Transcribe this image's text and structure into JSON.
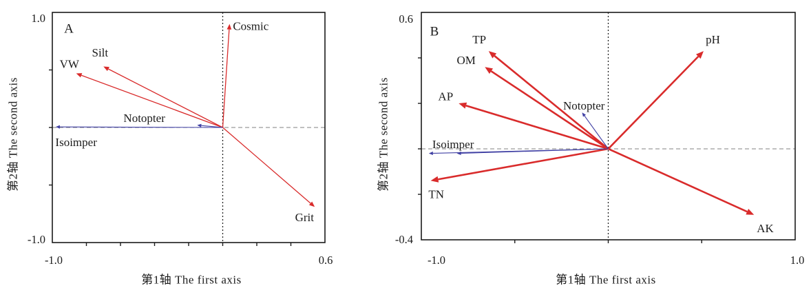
{
  "colors": {
    "env_arrow": "#d92b2b",
    "species_arrow": "#3f3fa3",
    "axis": "#1a1a1a",
    "zero_line_h": "#808080",
    "zero_line_v": "#222222"
  },
  "chart_data": [
    {
      "type": "scatter",
      "subtype": "cca-biplot",
      "panel_label": "A",
      "xlabel": "第1轴 The first axis",
      "ylabel": "第2轴 The second axis",
      "xlim": [
        -1.0,
        0.6
      ],
      "ylim": [
        -1.0,
        1.0
      ],
      "x_left_label": "-1.0",
      "x_right_label": "0.6",
      "y_top_label": "1.0",
      "y_bottom_label": "-1.0",
      "xticks": [
        -0.8,
        -0.6,
        -0.4,
        -0.2,
        0.0,
        0.2,
        0.4
      ],
      "yticks": [
        -0.5,
        0.0,
        0.5
      ],
      "grid": false,
      "env_arrow_width": 1.3,
      "head_len": 8,
      "env_arrows": [
        {
          "name": "VW",
          "x": -0.86,
          "y": 0.47,
          "label_at": [
            -0.9,
            0.55
          ],
          "anchor": "middle"
        },
        {
          "name": "Silt",
          "x": -0.7,
          "y": 0.53,
          "label_at": [
            -0.72,
            0.65
          ],
          "anchor": "middle"
        },
        {
          "name": "Cosmic",
          "x": 0.04,
          "y": 0.9,
          "label_at": [
            0.06,
            0.88
          ],
          "anchor": "start"
        },
        {
          "name": "Grit",
          "x": 0.54,
          "y": -0.69,
          "label_at": [
            0.48,
            -0.78
          ],
          "anchor": "middle"
        }
      ],
      "species_arrows": [
        {
          "name": "Isoimper",
          "x": -0.98,
          "y": 0.005,
          "label_at": [
            -0.86,
            -0.13
          ],
          "anchor": "middle"
        },
        {
          "name": "Notopter",
          "x": -0.15,
          "y": 0.02,
          "label_at": [
            -0.46,
            0.08
          ],
          "anchor": "middle"
        }
      ]
    },
    {
      "type": "scatter",
      "subtype": "cca-biplot",
      "panel_label": "B",
      "xlabel": "第1轴 The first axis",
      "ylabel": "第2轴 The second axis",
      "xlim": [
        -1.0,
        1.0
      ],
      "ylim": [
        -0.4,
        0.6
      ],
      "x_left_label": "-1.0",
      "x_right_label": "1.0",
      "y_top_label": "0.6",
      "y_bottom_label": "-0.4",
      "xticks": [
        -0.5,
        0.0,
        0.5
      ],
      "yticks": [
        -0.2,
        0.0,
        0.2,
        0.4
      ],
      "grid": false,
      "env_arrow_width": 2.6,
      "head_len": 11,
      "env_arrows": [
        {
          "name": "TP",
          "x": -0.64,
          "y": 0.43,
          "label_at": [
            -0.69,
            0.48
          ],
          "anchor": "middle"
        },
        {
          "name": "OM",
          "x": -0.66,
          "y": 0.36,
          "label_at": [
            -0.76,
            0.39
          ],
          "anchor": "middle"
        },
        {
          "name": "AP",
          "x": -0.8,
          "y": 0.2,
          "label_at": [
            -0.87,
            0.23
          ],
          "anchor": "middle"
        },
        {
          "name": "pH",
          "x": 0.51,
          "y": 0.43,
          "label_at": [
            0.56,
            0.48
          ],
          "anchor": "middle"
        },
        {
          "name": "TN",
          "x": -0.95,
          "y": -0.14,
          "label_at": [
            -0.92,
            -0.2
          ],
          "anchor": "middle"
        },
        {
          "name": "AK",
          "x": 0.78,
          "y": -0.29,
          "label_at": [
            0.84,
            -0.35
          ],
          "anchor": "middle"
        }
      ],
      "species_arrows": [
        {
          "name": "Isoimper",
          "x": -0.96,
          "y": -0.02,
          "label_at": [
            -0.83,
            0.02
          ],
          "anchor": "middle"
        },
        {
          "name": "Notopter",
          "x": -0.14,
          "y": 0.16,
          "label_at": [
            -0.13,
            0.19
          ],
          "anchor": "middle"
        },
        {
          "name": "",
          "x": -0.81,
          "y": -0.02,
          "label_at": [
            -0.81,
            -0.02
          ],
          "anchor": "middle"
        }
      ]
    }
  ]
}
